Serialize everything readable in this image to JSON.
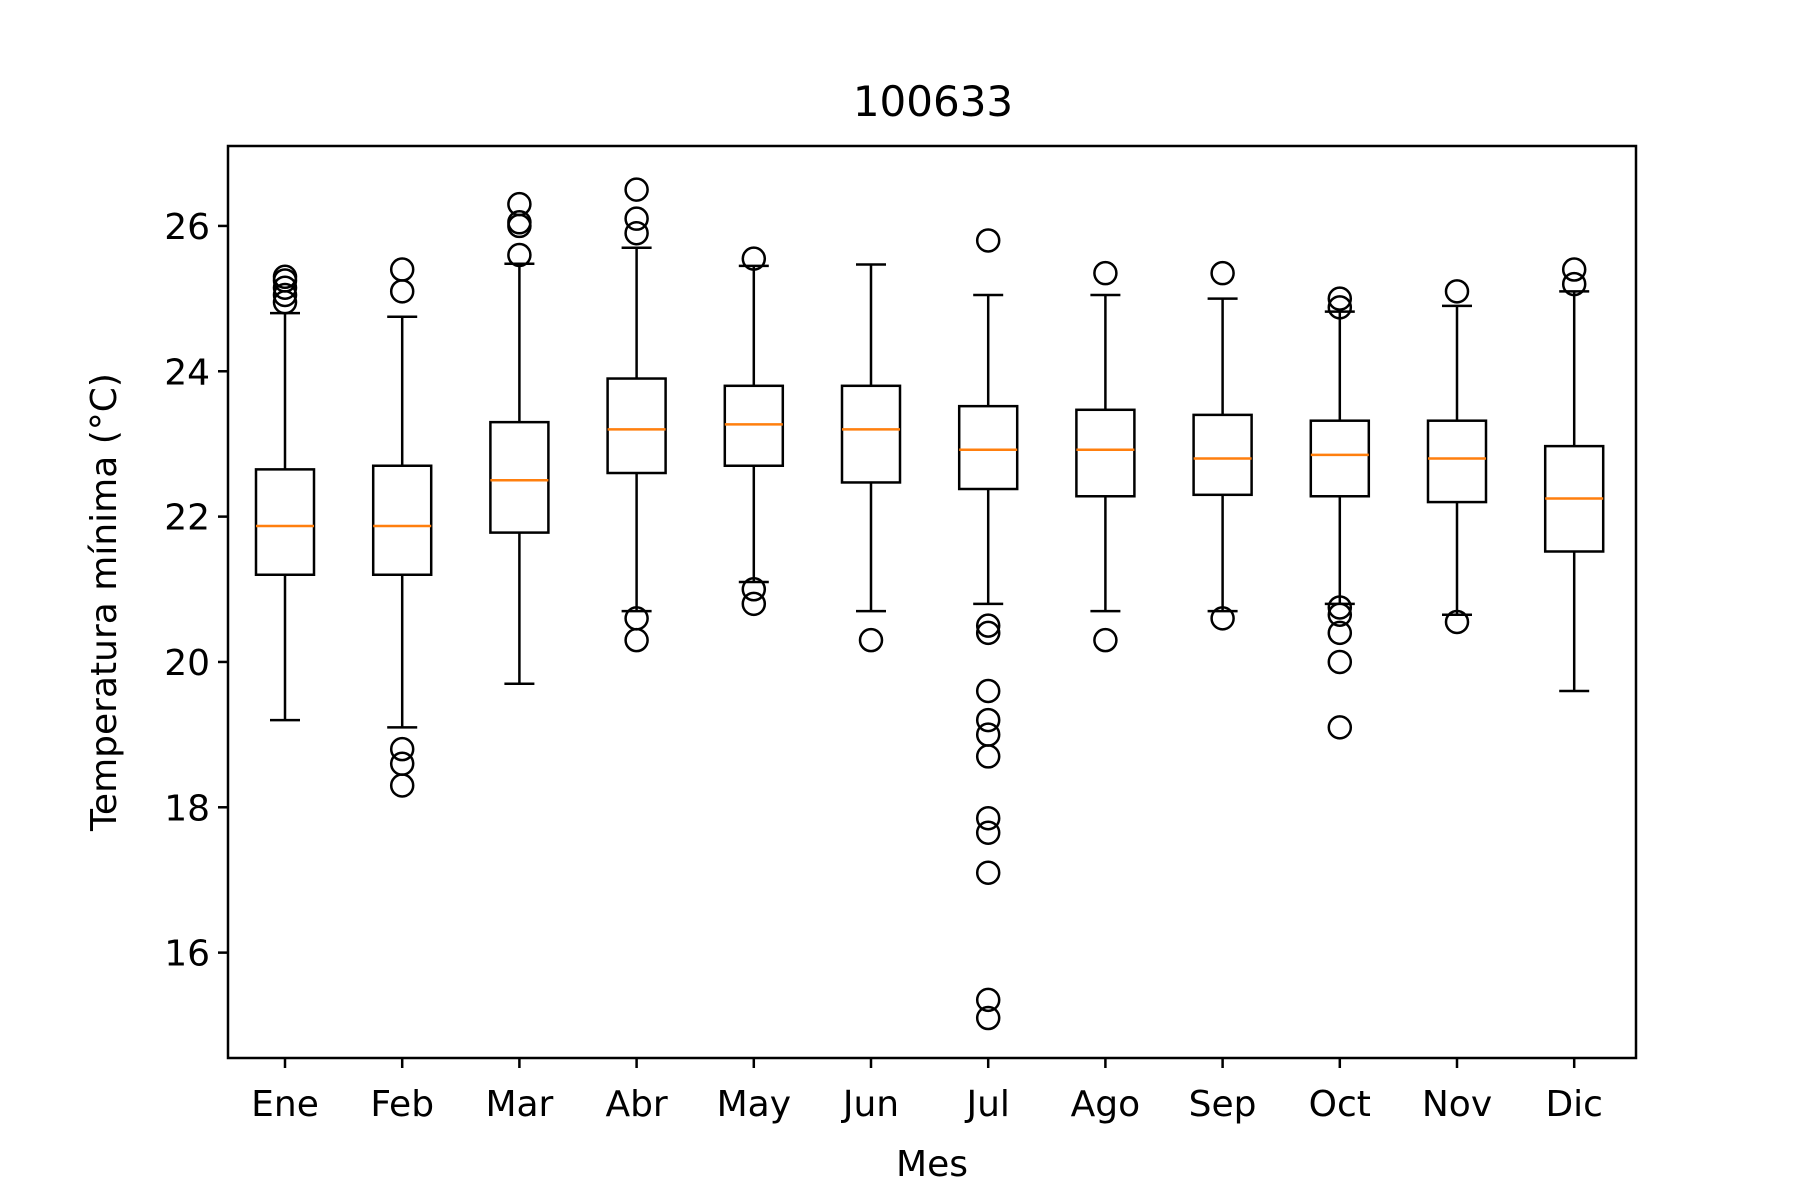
{
  "chart_data": {
    "type": "box",
    "title": "100633",
    "xlabel": "Mes",
    "ylabel": "Temperatura mínima (°C)",
    "ylim": [
      14.55,
      27.1
    ],
    "yticks": [
      16,
      18,
      20,
      22,
      24,
      26
    ],
    "grid": false,
    "categories": [
      "Ene",
      "Feb",
      "Mar",
      "Abr",
      "May",
      "Jun",
      "Jul",
      "Ago",
      "Sep",
      "Oct",
      "Nov",
      "Dic"
    ],
    "boxes": [
      {
        "month": "Ene",
        "whisker_low": 19.2,
        "q1": 21.2,
        "median": 21.87,
        "q3": 22.65,
        "whisker_high": 24.8,
        "outliers": [
          24.95,
          25.05,
          25.15,
          25.25,
          25.3
        ]
      },
      {
        "month": "Feb",
        "whisker_low": 19.1,
        "q1": 21.2,
        "median": 21.87,
        "q3": 22.7,
        "whisker_high": 24.75,
        "outliers": [
          18.3,
          18.6,
          18.8,
          25.1,
          25.4
        ]
      },
      {
        "month": "Mar",
        "whisker_low": 19.7,
        "q1": 21.78,
        "median": 22.5,
        "q3": 23.3,
        "whisker_high": 25.48,
        "outliers": [
          25.6,
          26.0,
          26.05,
          26.3
        ]
      },
      {
        "month": "Abr",
        "whisker_low": 20.7,
        "q1": 22.6,
        "median": 23.2,
        "q3": 23.9,
        "whisker_high": 25.7,
        "outliers": [
          20.3,
          20.6,
          25.9,
          26.1,
          26.5
        ]
      },
      {
        "month": "May",
        "whisker_low": 21.1,
        "q1": 22.7,
        "median": 23.27,
        "q3": 23.8,
        "whisker_high": 25.45,
        "outliers": [
          20.8,
          21.0,
          25.55
        ]
      },
      {
        "month": "Jun",
        "whisker_low": 20.7,
        "q1": 22.47,
        "median": 23.2,
        "q3": 23.8,
        "whisker_high": 25.47,
        "outliers": [
          20.3
        ]
      },
      {
        "month": "Jul",
        "whisker_low": 20.8,
        "q1": 22.38,
        "median": 22.92,
        "q3": 23.52,
        "whisker_high": 25.05,
        "outliers": [
          15.1,
          15.35,
          17.1,
          17.65,
          17.85,
          18.7,
          19.0,
          19.2,
          19.6,
          20.4,
          20.5,
          25.8
        ]
      },
      {
        "month": "Ago",
        "whisker_low": 20.7,
        "q1": 22.28,
        "median": 22.92,
        "q3": 23.47,
        "whisker_high": 25.05,
        "outliers": [
          20.3,
          25.35
        ]
      },
      {
        "month": "Sep",
        "whisker_low": 20.7,
        "q1": 22.3,
        "median": 22.8,
        "q3": 23.4,
        "whisker_high": 25.0,
        "outliers": [
          20.6,
          25.35
        ]
      },
      {
        "month": "Oct",
        "whisker_low": 20.8,
        "q1": 22.28,
        "median": 22.85,
        "q3": 23.32,
        "whisker_high": 24.82,
        "outliers": [
          19.1,
          20.0,
          20.4,
          20.65,
          20.75,
          24.88,
          25.0
        ]
      },
      {
        "month": "Nov",
        "whisker_low": 20.65,
        "q1": 22.2,
        "median": 22.8,
        "q3": 23.32,
        "whisker_high": 24.9,
        "outliers": [
          20.55,
          25.1
        ]
      },
      {
        "month": "Dic",
        "whisker_low": 19.6,
        "q1": 21.52,
        "median": 22.25,
        "q3": 22.97,
        "whisker_high": 25.1,
        "outliers": [
          25.2,
          25.4
        ]
      }
    ],
    "colors": {
      "median": "#ff7f0e",
      "box": "#000000",
      "background": "#ffffff"
    }
  }
}
